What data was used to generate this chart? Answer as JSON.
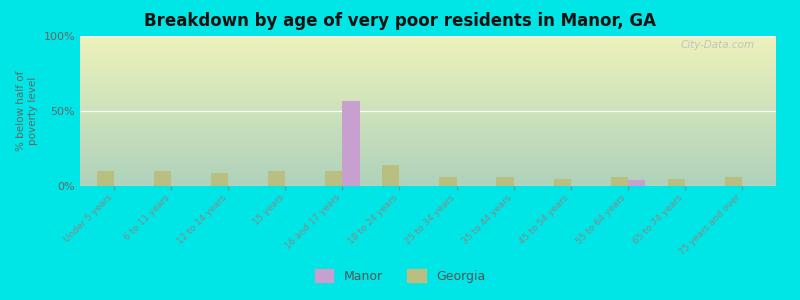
{
  "title": "Breakdown by age of very poor residents in Manor, GA",
  "categories": [
    "Under 5 years",
    "6 to 11 years",
    "12 to 14 years",
    "15 years",
    "16 and 17 years",
    "18 to 24 years",
    "25 to 34 years",
    "35 to 44 years",
    "45 to 54 years",
    "55 to 64 years",
    "65 to 74 years",
    "75 years and over"
  ],
  "manor_values": [
    0,
    0,
    0,
    0,
    57,
    0,
    0,
    0,
    0,
    4,
    0,
    0
  ],
  "georgia_values": [
    10,
    10,
    9,
    10,
    10,
    14,
    6,
    6,
    5,
    6,
    5,
    6
  ],
  "manor_color": "#c8a0d0",
  "georgia_color": "#b8bf80",
  "bg_color": "#00e5e5",
  "ylabel": "% below half of\npoverty level",
  "ylim": [
    0,
    100
  ],
  "yticks": [
    0,
    50,
    100
  ],
  "bar_width": 0.3,
  "watermark": "City-Data.com",
  "legend_manor": "Manor",
  "legend_georgia": "Georgia"
}
